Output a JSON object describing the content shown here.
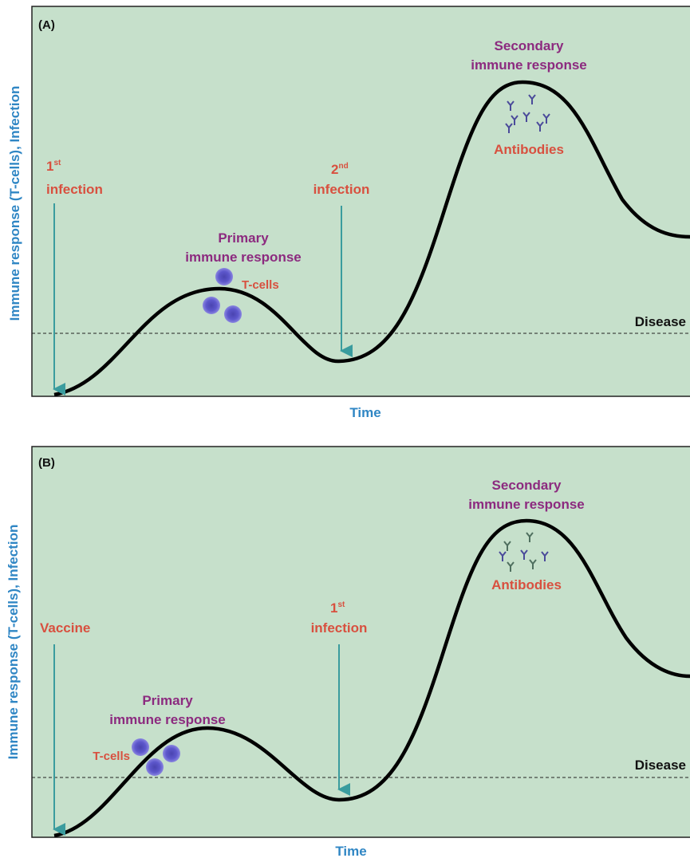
{
  "panels": [
    {
      "label": "(A)",
      "y_axis": "Immune response (T-cells), Infection",
      "x_axis": "Time",
      "threshold": "Disease",
      "events": [
        {
          "number": "1",
          "suffix": "st",
          "text": "infection"
        },
        {
          "number": "2",
          "suffix": "nd",
          "text": "infection"
        }
      ],
      "primary": {
        "line1": "Primary",
        "line2": "immune response",
        "cells": "T-cells"
      },
      "secondary": {
        "line1": "Secondary",
        "line2": "immune response",
        "antibodies": "Antibodies"
      }
    },
    {
      "label": "(B)",
      "y_axis": "Immune response (T-cells), Infection",
      "x_axis": "Time",
      "threshold": "Disease",
      "events": [
        {
          "text": "Vaccine"
        },
        {
          "number": "1",
          "suffix": "st",
          "text": "infection"
        }
      ],
      "primary": {
        "line1": "Primary",
        "line2": "immune response",
        "cells": "T-cells"
      },
      "secondary": {
        "line1": "Secondary",
        "line2": "immune response",
        "antibodies": "Antibodies"
      }
    }
  ]
}
